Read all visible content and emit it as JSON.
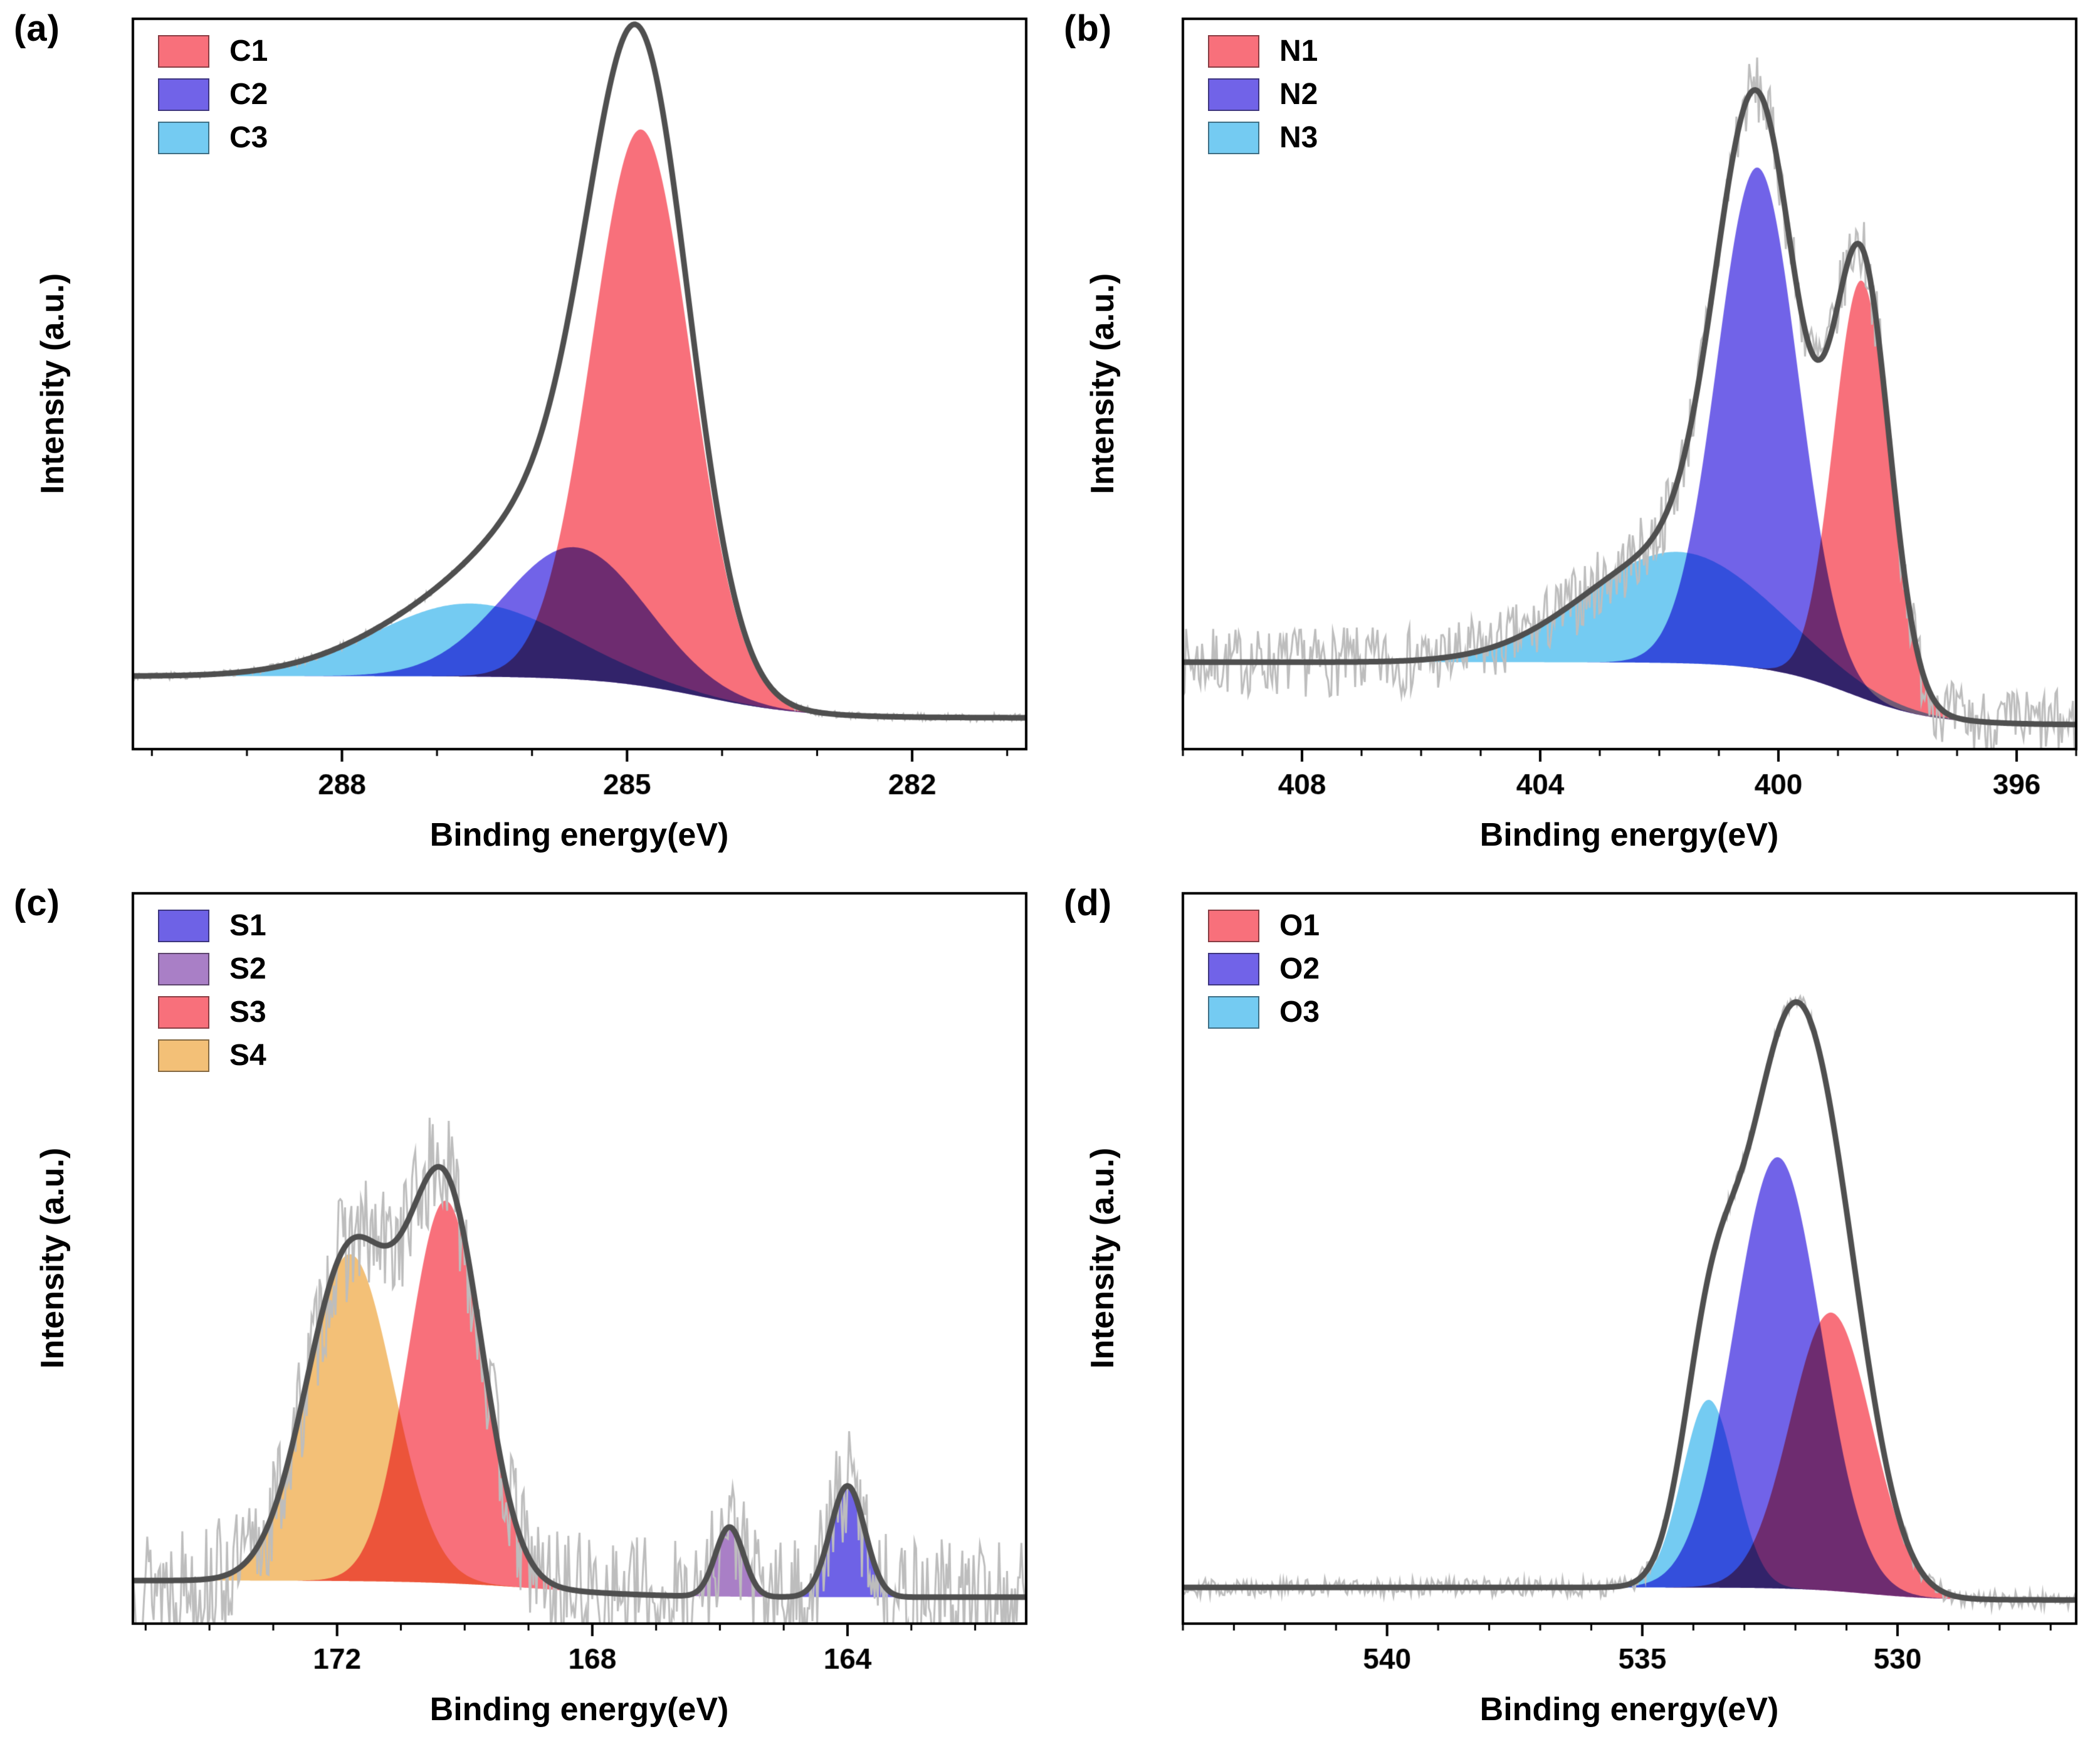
{
  "figure": {
    "background": "#ffffff"
  },
  "style": {
    "envelope_color": "#4F4F4F",
    "raw_color": "#BDBDBD",
    "axis_color": "#000000"
  },
  "chart_data": [
    {
      "panel": "(a)",
      "type": "area",
      "xlabel": "Binding energy(eV)",
      "ylabel": "Intensity (a.u.)",
      "x_range": [
        290.2,
        280.8
      ],
      "xticks": [
        288,
        285,
        282
      ],
      "minor_tick_step": 1,
      "ylim": [
        0,
        1.05
      ],
      "legend_position": "top-left",
      "noise_amplitude": 0.005,
      "noise_seed": 3,
      "baseline": {
        "left": 0.105,
        "right": 0.045,
        "step_center": 284.2,
        "step_width": 0.55
      },
      "series": [
        {
          "name": "C1",
          "color": "#F8707B",
          "center": 284.85,
          "sigma": 0.52,
          "amplitude": 0.8
        },
        {
          "name": "C2",
          "color": "#7163E8",
          "center": 285.55,
          "sigma": 0.75,
          "amplitude": 0.19
        },
        {
          "name": "C3",
          "color": "#74CBF2",
          "center": 286.65,
          "sigma": 1.0,
          "amplitude": 0.105
        }
      ]
    },
    {
      "panel": "(b)",
      "type": "area",
      "xlabel": "Binding energy(eV)",
      "ylabel": "Intensity (a.u.)",
      "x_range": [
        410,
        395
      ],
      "xticks": [
        408,
        404,
        400,
        396
      ],
      "minor_tick_step": 1,
      "ylim": [
        0,
        1.05
      ],
      "legend_position": "top-left",
      "noise_amplitude": 0.05,
      "noise_seed": 7,
      "baseline": {
        "left": 0.125,
        "right": 0.035,
        "step_center": 398.8,
        "step_width": 0.7
      },
      "series": [
        {
          "name": "N1",
          "color": "#F8707B",
          "center": 398.6,
          "sigma": 0.47,
          "amplitude": 0.6
        },
        {
          "name": "N2",
          "color": "#7163E8",
          "center": 400.35,
          "sigma": 0.68,
          "amplitude": 0.72
        },
        {
          "name": "N3",
          "color": "#74CBF2",
          "center": 401.7,
          "sigma": 1.55,
          "amplitude": 0.16
        }
      ]
    },
    {
      "panel": "(c)",
      "type": "area",
      "xlabel": "Binding energy(eV)",
      "ylabel": "Intensity (a.u.)",
      "x_range": [
        175.2,
        161.2
      ],
      "xticks": [
        172,
        168,
        164
      ],
      "minor_tick_step": 1,
      "ylim": [
        0,
        1.05
      ],
      "legend_position": "top-left",
      "noise_amplitude": 0.085,
      "noise_seed": 13,
      "baseline": {
        "left": 0.062,
        "right": 0.038,
        "step_center": 168.8,
        "step_width": 0.9
      },
      "series": [
        {
          "name": "S1",
          "color": "#6E62E6",
          "center": 164.0,
          "sigma": 0.27,
          "amplitude": 0.16
        },
        {
          "name": "S2",
          "color": "#A97FC6",
          "center": 165.85,
          "sigma": 0.22,
          "amplitude": 0.1
        },
        {
          "name": "S3",
          "color": "#F8707B",
          "center": 170.3,
          "sigma": 0.58,
          "amplitude": 0.55
        },
        {
          "name": "S4",
          "color": "#F3C077",
          "center": 171.8,
          "sigma": 0.68,
          "amplitude": 0.47
        }
      ]
    },
    {
      "panel": "(d)",
      "type": "area",
      "xlabel": "Binding energy(eV)",
      "ylabel": "Intensity (a.u.)",
      "x_range": [
        544,
        526.5
      ],
      "xticks": [
        540,
        535,
        530
      ],
      "minor_tick_step": 1,
      "ylim": [
        0,
        1.05
      ],
      "legend_position": "top-left",
      "noise_amplitude": 0.013,
      "noise_seed": 29,
      "baseline": {
        "left": 0.052,
        "right": 0.034,
        "step_center": 530.6,
        "step_width": 0.7
      },
      "series": [
        {
          "name": "O1",
          "color": "#F8707B",
          "center": 531.3,
          "sigma": 0.8,
          "amplitude": 0.4
        },
        {
          "name": "O2",
          "color": "#7163E8",
          "center": 532.35,
          "sigma": 0.85,
          "amplitude": 0.62
        },
        {
          "name": "O3",
          "color": "#74CBF2",
          "center": 533.7,
          "sigma": 0.52,
          "amplitude": 0.27
        }
      ]
    }
  ]
}
